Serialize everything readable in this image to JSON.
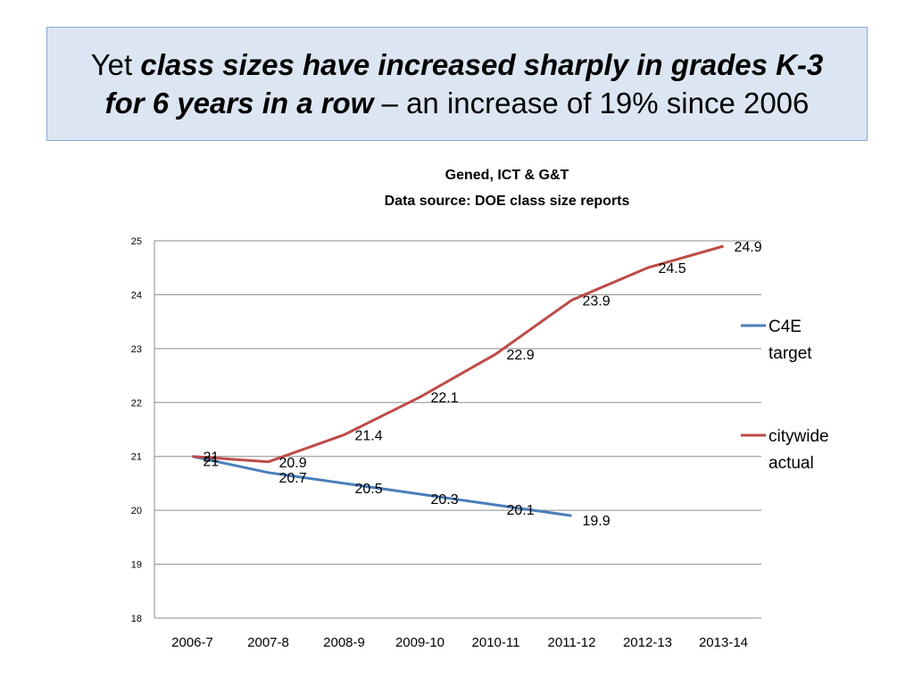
{
  "slide": {
    "title_line1_pre": "Yet ",
    "title_line1_em": "class sizes have increased sharply in grades K-3",
    "title_line2_em": "for 6 years in a row",
    "title_line2_post": " – an increase of 19% since 2006"
  },
  "chart_data": {
    "type": "line",
    "title": "Gened, ICT & G&T",
    "subtitle": "Data source: DOE class size reports",
    "xlabel": "",
    "ylabel": "",
    "categories": [
      "2006-7",
      "2007-8",
      "2008-9",
      "2009-10",
      "2010-11",
      "2011-12",
      "2012-13",
      "2013-14"
    ],
    "ylim": [
      18,
      25
    ],
    "yticks": [
      "18",
      "19",
      "20",
      "21",
      "22",
      "23",
      "24",
      "25"
    ],
    "grid": true,
    "legend_position": "right",
    "series": [
      {
        "name": "C4E target",
        "legend_lines": [
          "C4E",
          "target"
        ],
        "color": "#4a7ebb",
        "values": [
          21,
          20.7,
          20.5,
          20.3,
          20.1,
          19.9,
          null,
          null
        ],
        "labels": [
          "21",
          "20.7",
          "20.5",
          "20.3",
          "20.1",
          "19.9",
          "",
          ""
        ]
      },
      {
        "name": "citywide actual",
        "legend_lines": [
          "citywide",
          "actual"
        ],
        "color": "#be4b48",
        "values": [
          21,
          20.9,
          21.4,
          22.1,
          22.9,
          23.9,
          24.5,
          24.9
        ],
        "labels": [
          "21",
          "20.9",
          "21.4",
          "22.1",
          "22.9",
          "23.9",
          "24.5",
          "24.9"
        ]
      }
    ]
  }
}
